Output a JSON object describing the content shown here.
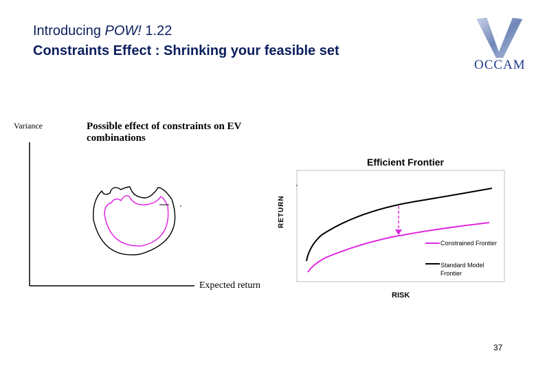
{
  "slide": {
    "title_prefix": "Introducing ",
    "title_product": "POW!",
    "title_version": " 1.22",
    "subtitle": "Constraints Effect : Shrinking your feasible set",
    "page_number": "37"
  },
  "logo": {
    "text": "OCCAM"
  },
  "ev_diagram": {
    "y_label": "Variance",
    "title": "Possible effect of constraints on EV combinations",
    "x_label": "Expected return"
  },
  "efficient_frontier": {
    "title": "Efficient Frontier",
    "y_label": "RETURN",
    "x_label": "RISK",
    "legend": {
      "constrained": "Constrained Frontier",
      "standard": "Standard Model Frontier"
    },
    "colors": {
      "constrained": "#e028e0",
      "standard": "#000000"
    }
  }
}
